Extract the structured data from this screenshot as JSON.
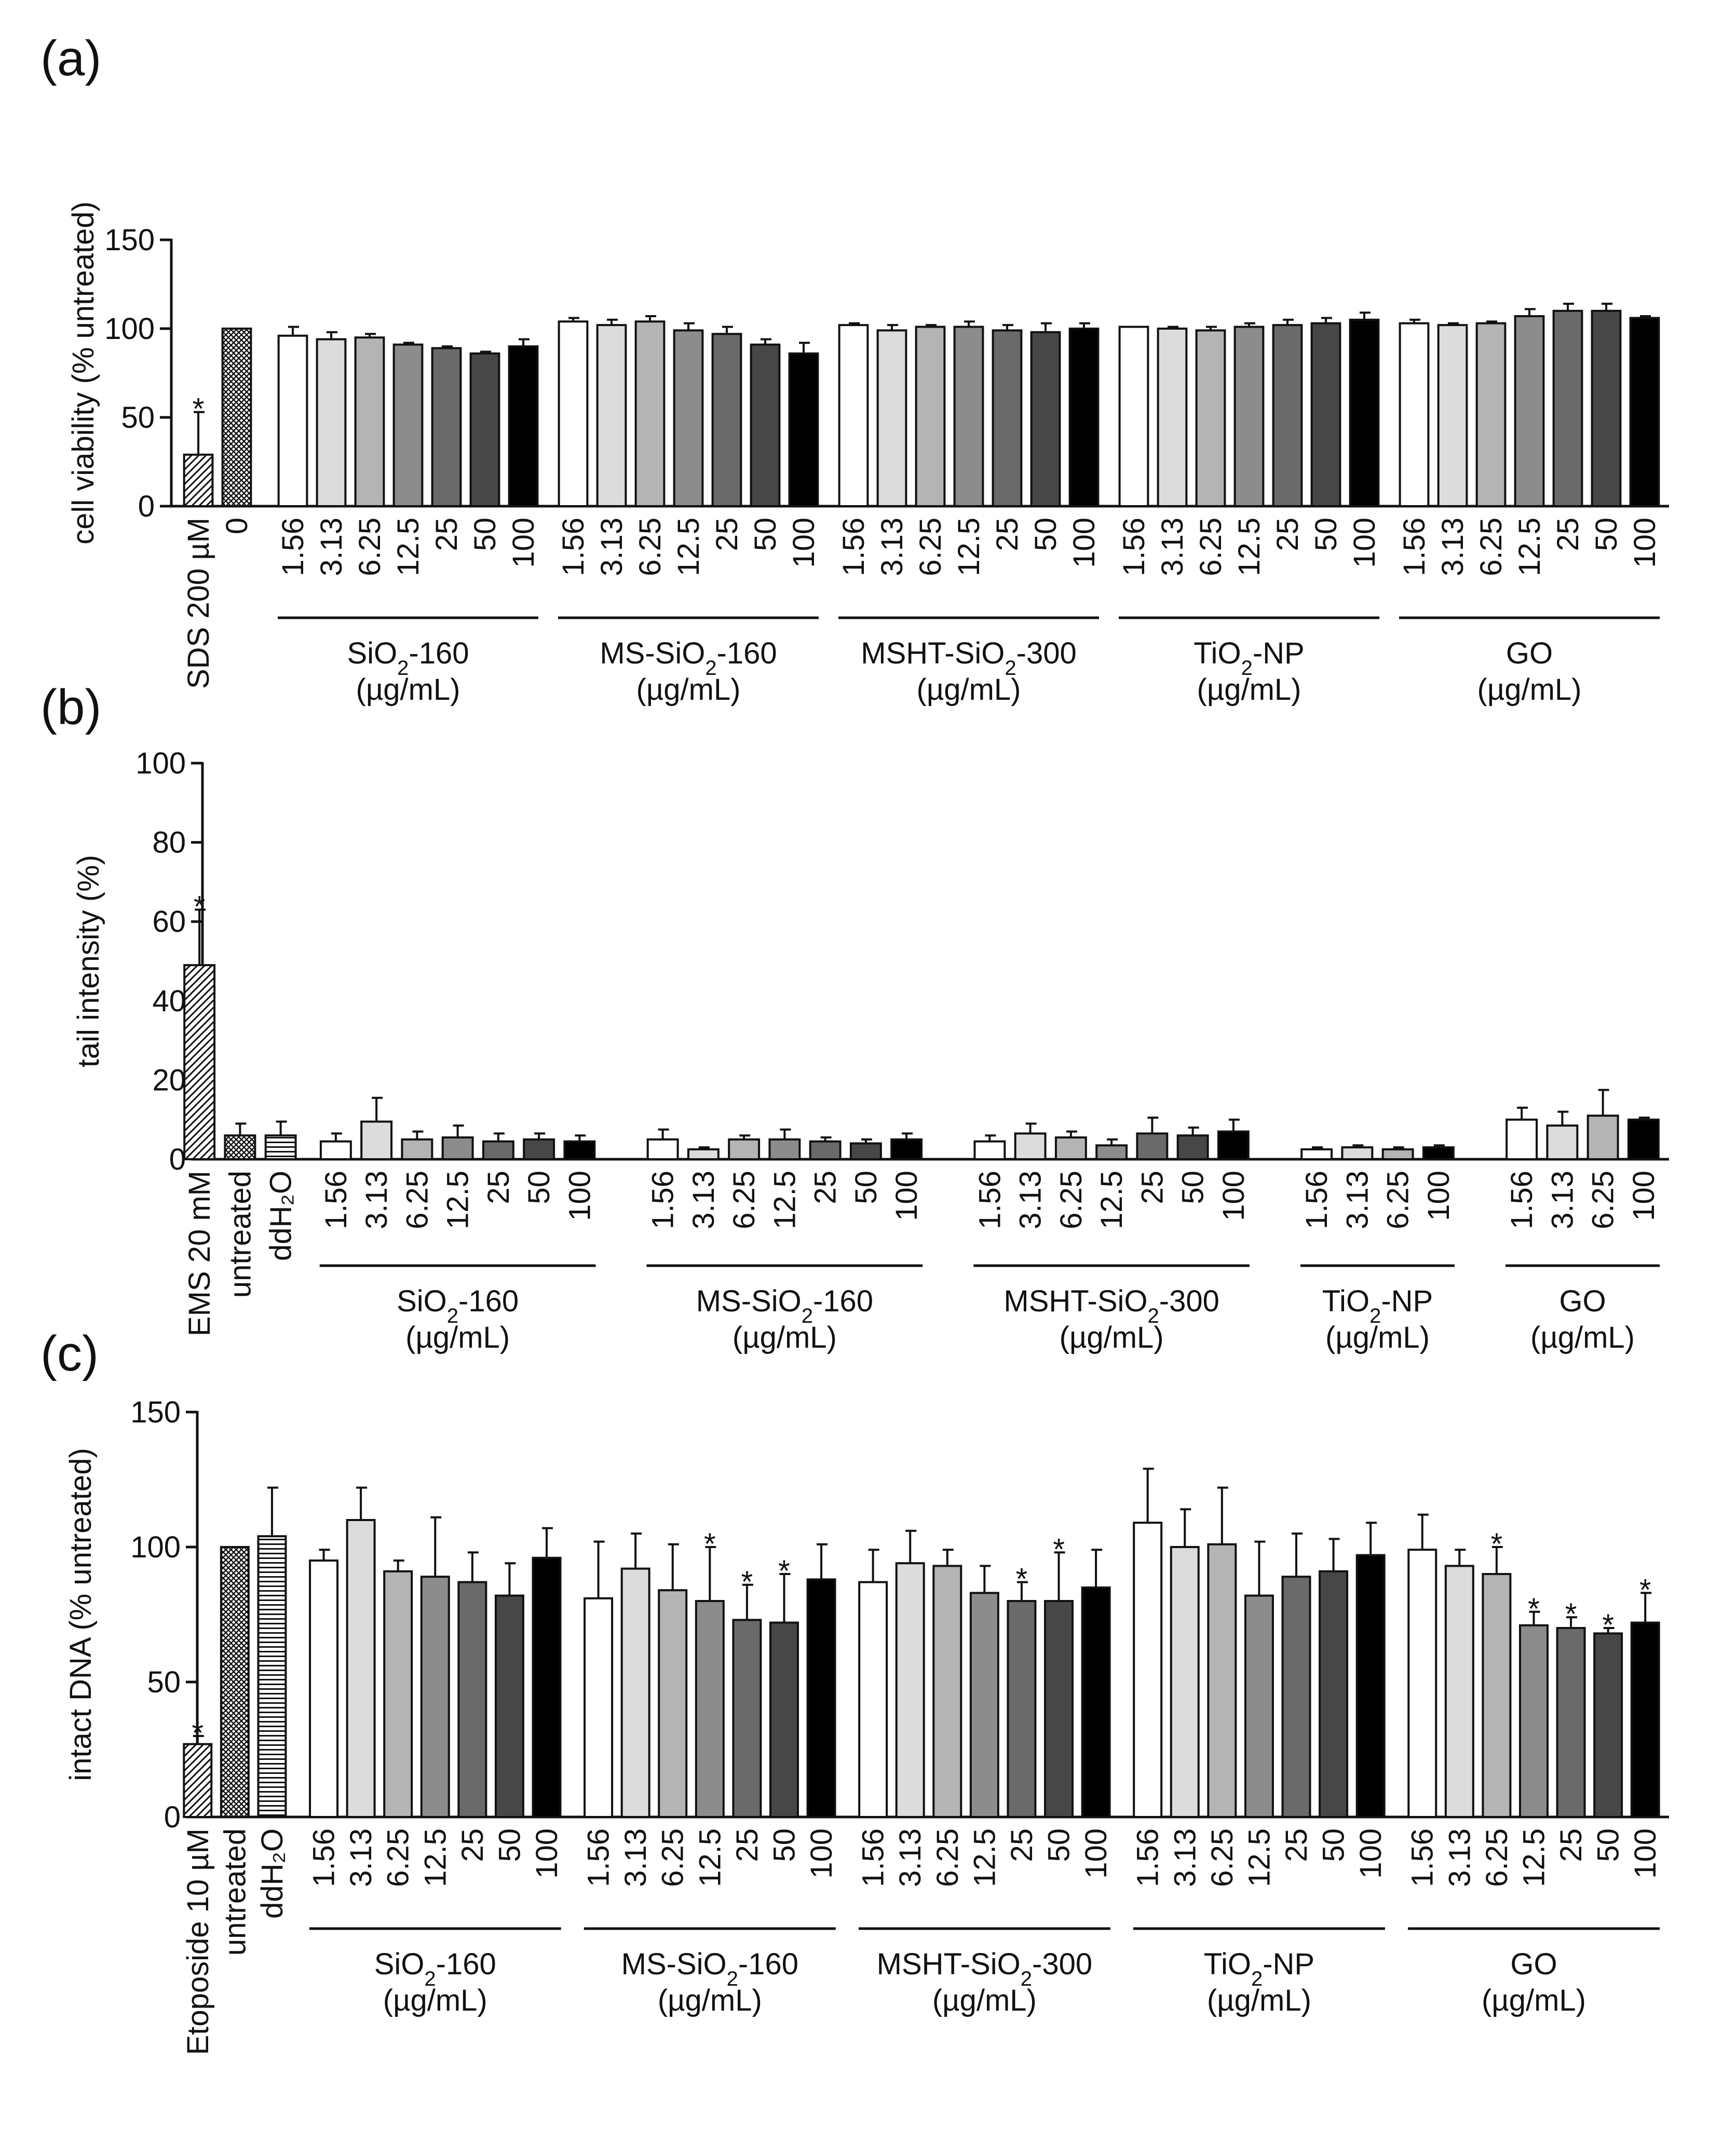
{
  "chart_data": [
    {
      "type": "bar",
      "panel": "(a)",
      "ylabel": "cell viability (% untreated)",
      "ylim": [
        0,
        150
      ],
      "yticks": [
        "0",
        "50",
        "100",
        "150"
      ],
      "controls": [
        {
          "label": "SDS 200 µM",
          "value": 29,
          "error": 24,
          "significant": true,
          "pattern": "diag"
        },
        {
          "label": "0",
          "value": 100,
          "error": 0,
          "significant": false,
          "pattern": "cross"
        }
      ],
      "groups": [
        {
          "name": "SiO₂-160",
          "unit": "(µg/mL)",
          "doses": [
            "1.56",
            "3.13",
            "6.25",
            "12.5",
            "25",
            "50",
            "100"
          ],
          "values": [
            96,
            94,
            95,
            91,
            89,
            86,
            90
          ],
          "errors": [
            5,
            4,
            2,
            1,
            1,
            1,
            4
          ],
          "significant": [
            false,
            false,
            false,
            false,
            false,
            false,
            false
          ]
        },
        {
          "name": "MS-SiO₂-160",
          "unit": "(µg/mL)",
          "doses": [
            "1.56",
            "3.13",
            "6.25",
            "12.5",
            "25",
            "50",
            "100"
          ],
          "values": [
            104,
            102,
            104,
            99,
            97,
            91,
            86
          ],
          "errors": [
            2,
            3,
            3,
            4,
            4,
            3,
            6
          ],
          "significant": [
            false,
            false,
            false,
            false,
            false,
            false,
            false
          ]
        },
        {
          "name": "MSHT-SiO₂-300",
          "unit": "(µg/mL)",
          "doses": [
            "1.56",
            "3.13",
            "6.25",
            "12.5",
            "25",
            "50",
            "100"
          ],
          "values": [
            102,
            99,
            101,
            101,
            99,
            98,
            100
          ],
          "errors": [
            1,
            3,
            1,
            3,
            3,
            5,
            3
          ],
          "significant": [
            false,
            false,
            false,
            false,
            false,
            false,
            false
          ]
        },
        {
          "name": "TiO₂-NP",
          "unit": "(µg/mL)",
          "doses": [
            "1.56",
            "3.13",
            "6.25",
            "12.5",
            "25",
            "50",
            "100"
          ],
          "values": [
            101,
            100,
            99,
            101,
            102,
            103,
            105
          ],
          "errors": [
            0,
            1,
            2,
            2,
            3,
            3,
            4
          ],
          "significant": [
            false,
            false,
            false,
            false,
            false,
            false,
            false
          ]
        },
        {
          "name": "GO",
          "unit": "(µg/mL)",
          "doses": [
            "1.56",
            "3.13",
            "6.25",
            "12.5",
            "25",
            "50",
            "100"
          ],
          "values": [
            103,
            102,
            103,
            107,
            110,
            110,
            106
          ],
          "errors": [
            2,
            1,
            1,
            4,
            4,
            4,
            1
          ],
          "significant": [
            false,
            false,
            false,
            false,
            false,
            false,
            false
          ]
        }
      ]
    },
    {
      "type": "bar",
      "panel": "(b)",
      "ylabel": "tail intensity (%)",
      "ylim": [
        0,
        100
      ],
      "yticks": [
        "0",
        "20",
        "40",
        "60",
        "80",
        "100"
      ],
      "controls": [
        {
          "label": "EMS 20 mM",
          "value": 49,
          "error": 14,
          "significant": true,
          "pattern": "diag"
        },
        {
          "label": "untreated",
          "value": 6,
          "error": 3,
          "significant": false,
          "pattern": "cross"
        },
        {
          "label": "ddH₂O",
          "value": 6,
          "error": 3.5,
          "significant": false,
          "pattern": "horiz"
        }
      ],
      "groups": [
        {
          "name": "SiO₂-160",
          "unit": "(µg/mL)",
          "doses": [
            "1.56",
            "3.13",
            "6.25",
            "12.5",
            "25",
            "50",
            "100"
          ],
          "values": [
            4.5,
            9.5,
            5,
            5.5,
            4.5,
            5,
            4.5
          ],
          "errors": [
            2,
            6,
            2,
            3,
            2,
            1.5,
            1.5
          ],
          "significant": [
            false,
            false,
            false,
            false,
            false,
            false,
            false
          ]
        },
        {
          "name": "MS-SiO₂-160",
          "unit": "(µg/mL)",
          "doses": [
            "1.56",
            "3.13",
            "6.25",
            "12.5",
            "25",
            "50",
            "100"
          ],
          "values": [
            5,
            2.5,
            5,
            5,
            4.5,
            4,
            5
          ],
          "errors": [
            2.5,
            0.5,
            1,
            2.5,
            1,
            1,
            1.5
          ],
          "significant": [
            false,
            false,
            false,
            false,
            false,
            false,
            false
          ]
        },
        {
          "name": "MSHT-SiO₂-300",
          "unit": "(µg/mL)",
          "doses": [
            "1.56",
            "3.13",
            "6.25",
            "12.5",
            "25",
            "50",
            "100"
          ],
          "values": [
            4.5,
            6.5,
            5.5,
            3.5,
            6.5,
            6,
            7
          ],
          "errors": [
            1.5,
            2.5,
            1.5,
            1.5,
            4,
            2,
            3
          ],
          "significant": [
            false,
            false,
            false,
            false,
            false,
            false,
            false
          ]
        },
        {
          "name": "TiO₂-NP",
          "unit": "(µg/mL)",
          "doses": [
            "1.56",
            "3.13",
            "6.25",
            "100"
          ],
          "values": [
            2.5,
            3,
            2.5,
            3
          ],
          "errors": [
            0.5,
            0.5,
            0.5,
            0.5
          ],
          "significant": [
            false,
            false,
            false,
            false
          ]
        },
        {
          "name": "GO",
          "unit": "(µg/mL)",
          "doses": [
            "1.56",
            "3.13",
            "6.25",
            "100"
          ],
          "values": [
            10,
            8.5,
            11,
            10
          ],
          "errors": [
            3,
            3.5,
            6.5,
            0.5
          ],
          "significant": [
            false,
            false,
            false,
            false
          ]
        }
      ]
    },
    {
      "type": "bar",
      "panel": "(c)",
      "ylabel": "intact DNA (% untreated)",
      "ylim": [
        0,
        150
      ],
      "yticks": [
        "0",
        "50",
        "100",
        "150"
      ],
      "controls": [
        {
          "label": "Etoposide 10 µM",
          "value": 27,
          "error": 3,
          "significant": true,
          "pattern": "diag"
        },
        {
          "label": "untreated",
          "value": 100,
          "error": 0,
          "significant": false,
          "pattern": "cross"
        },
        {
          "label": "ddH₂O",
          "value": 104,
          "error": 18,
          "significant": false,
          "pattern": "horiz"
        }
      ],
      "groups": [
        {
          "name": "SiO₂-160",
          "unit": "(µg/mL)",
          "doses": [
            "1.56",
            "3.13",
            "6.25",
            "12.5",
            "25",
            "50",
            "100"
          ],
          "values": [
            95,
            110,
            91,
            89,
            87,
            82,
            96
          ],
          "errors": [
            4,
            12,
            4,
            22,
            11,
            12,
            11
          ],
          "significant": [
            false,
            false,
            false,
            false,
            false,
            false,
            false
          ]
        },
        {
          "name": "MS-SiO₂-160",
          "unit": "(µg/mL)",
          "doses": [
            "1.56",
            "3.13",
            "6.25",
            "12.5",
            "25",
            "50",
            "100"
          ],
          "values": [
            81,
            92,
            84,
            80,
            73,
            72,
            88
          ],
          "errors": [
            21,
            13,
            17,
            20,
            13,
            18,
            13
          ],
          "significant": [
            false,
            false,
            false,
            true,
            true,
            true,
            false
          ]
        },
        {
          "name": "MSHT-SiO₂-300",
          "unit": "(µg/mL)",
          "doses": [
            "1.56",
            "3.13",
            "6.25",
            "12.5",
            "25",
            "50",
            "100"
          ],
          "values": [
            87,
            94,
            93,
            83,
            80,
            80,
            85
          ],
          "errors": [
            12,
            12,
            6,
            10,
            7,
            18,
            14
          ],
          "significant": [
            false,
            false,
            false,
            false,
            true,
            true,
            false
          ]
        },
        {
          "name": "TiO₂-NP",
          "unit": "(µg/mL)",
          "doses": [
            "1.56",
            "3.13",
            "6.25",
            "12.5",
            "25",
            "50",
            "100"
          ],
          "values": [
            109,
            100,
            101,
            82,
            89,
            91,
            97
          ],
          "errors": [
            20,
            14,
            21,
            20,
            16,
            12,
            12
          ],
          "significant": [
            false,
            false,
            false,
            false,
            false,
            false,
            false
          ]
        },
        {
          "name": "GO",
          "unit": "(µg/mL)",
          "doses": [
            "1.56",
            "3.13",
            "6.25",
            "12.5",
            "25",
            "50",
            "100"
          ],
          "values": [
            99,
            93,
            90,
            71,
            70,
            68,
            72
          ],
          "errors": [
            13,
            6,
            10,
            5,
            4,
            2,
            11
          ],
          "significant": [
            false,
            false,
            true,
            true,
            true,
            true,
            true
          ]
        }
      ]
    }
  ]
}
